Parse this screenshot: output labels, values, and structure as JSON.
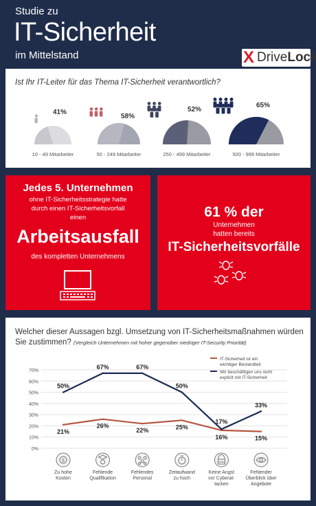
{
  "header": {
    "line1": "Studie zu",
    "title": "IT-Sicherheit",
    "line3": "im Mittelstand",
    "logo_x": "X",
    "logo_drive": "Drive",
    "logo_lock": "Lock"
  },
  "panel1": {
    "question": "Ist Ihr IT-Leiter für das Thema IT-Sicherheit verantwortlich?",
    "groups": [
      {
        "label": "10 - 49 Mitarbeiter",
        "percent_label": "41%",
        "value": 41,
        "people": 1
      },
      {
        "label": "50 - 249 Mitarbeiter",
        "percent_label": "58%",
        "value": 58,
        "people": 3
      },
      {
        "label": "250 - 499 Mitarbeiter",
        "percent_label": "52%",
        "value": 52,
        "people": 5
      },
      {
        "label": "500 - 999 Mitarbeiter",
        "percent_label": "65%",
        "value": 65,
        "people": 7
      }
    ],
    "colors": {
      "light": "#c8c8cc",
      "mid1": "#9a9ca8",
      "mid2": "#5a6078",
      "dark": "#1f2d5a"
    }
  },
  "box1": {
    "line1": "Jedes 5. Unternehmen",
    "line2": "ohne IT-Sicherheitsstrategie hatte",
    "line3": "durch einen IT-Sicherheitsvorfall",
    "line4": "einen",
    "big": "Arbeitsausfall",
    "line5": "des kompletten Unternehmens",
    "icon": "computer-icon"
  },
  "box2": {
    "big_pct": "61 % der",
    "line1": "Unternehmen",
    "line2": "hatten bereits",
    "big": "IT-Sicherheitsvorfälle",
    "icon": "bugs-icon"
  },
  "panel3": {
    "question": "Welcher dieser Aussagen bzgl. Umsetzung von IT-Sicherheitsmaßnahmen würden Sie zustimmen?",
    "sub": "(Vergleich Unternehmen mit hoher gegenüber niedriger IT-Security Priorität)"
  },
  "chart_data": {
    "type": "line",
    "title": "",
    "xlabel": "",
    "ylabel": "",
    "ylim": [
      0,
      70
    ],
    "yticks": [
      "0%",
      "10%",
      "20%",
      "30%",
      "40%",
      "50%",
      "60%",
      "70%"
    ],
    "categories": [
      "Zu hohe Kosten",
      "Fehlende Qualifikation",
      "Fehlendes Personal",
      "Zeitaufwand zu hoch",
      "Keine Angst vor Cyberattacken",
      "Fehlender Überblick über Angebote"
    ],
    "category_lines": [
      [
        "Zu hohe",
        "Kosten"
      ],
      [
        "Fehlende",
        "Qualifikation"
      ],
      [
        "Fehlendes",
        "Personal"
      ],
      [
        "Zeitaufwand",
        "zu hoch"
      ],
      [
        "Keine Angst",
        "vor Cyberat-",
        "tacken"
      ],
      [
        "Fehlender",
        "Überblick über",
        "Angebote"
      ]
    ],
    "category_icons": [
      "coins-icon",
      "graduate-icon",
      "people-icon",
      "stopwatch-icon",
      "hive-icon",
      "eye-icon"
    ],
    "grid": true,
    "legend_position": "top-right",
    "series": [
      {
        "name": "IT-Sicherheit ist ein wichtiger Bestandteil",
        "name_lines": [
          "IT-Sicherheit ist ein",
          "wichtiger Bestandteil"
        ],
        "values": [
          21,
          26,
          22,
          25,
          16,
          15
        ],
        "labels": [
          "21%",
          "26%",
          "22%",
          "25%",
          "16%",
          "15%"
        ],
        "color": "#b5553f"
      },
      {
        "name": "Wir beschäftigen uns nicht explizit mit IT-Sicherheit",
        "name_lines": [
          "Wir beschäftigen uns nicht",
          "explizit mit IT-Sicherheit"
        ],
        "values": [
          50,
          67,
          67,
          50,
          17,
          33
        ],
        "labels": [
          "50%",
          "67%",
          "67%",
          "50%",
          "17%",
          "33%"
        ],
        "color": "#1c2b55"
      }
    ]
  }
}
